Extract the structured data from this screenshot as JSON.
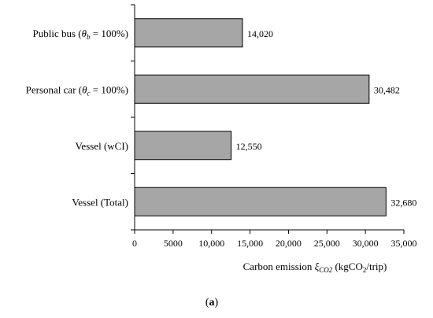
{
  "chart_data": {
    "type": "bar",
    "orientation": "horizontal",
    "categories": [
      {
        "prefix": "Public bus (",
        "symbol": "θ",
        "sub": "b",
        "suffix": " = 100%)"
      },
      {
        "prefix": "Personal car (",
        "symbol": "θ",
        "sub": "c",
        "suffix": " = 100%)"
      },
      {
        "prefix": "Vessel (wCI)",
        "symbol": "",
        "sub": "",
        "suffix": ""
      },
      {
        "prefix": "Vessel (Total)",
        "symbol": "",
        "sub": "",
        "suffix": ""
      }
    ],
    "values": [
      14020,
      30482,
      12550,
      32680
    ],
    "value_labels": [
      "14,020",
      "30,482",
      "12,550",
      "32,680"
    ],
    "xlim": [
      0,
      35000
    ],
    "xticks": [
      0,
      5000,
      10000,
      15000,
      20000,
      25000,
      30000,
      35000
    ],
    "xtick_labels": [
      "0",
      "5000",
      "10,000",
      "15,000",
      "20,000",
      "25,000",
      "30,000",
      "35,000"
    ],
    "xlabel": {
      "prefix": "Carbon emission ",
      "symbol": "ξ",
      "sub": "CO2",
      "units_prefix": " (kgCO",
      "units_sub": "2",
      "units_suffix": "/trip)"
    },
    "grid": false,
    "bar_color": "#a6a6a6",
    "bar_edge_color": "#000000",
    "panel_label": {
      "open": "(",
      "letter": "a",
      "close": ")"
    }
  }
}
